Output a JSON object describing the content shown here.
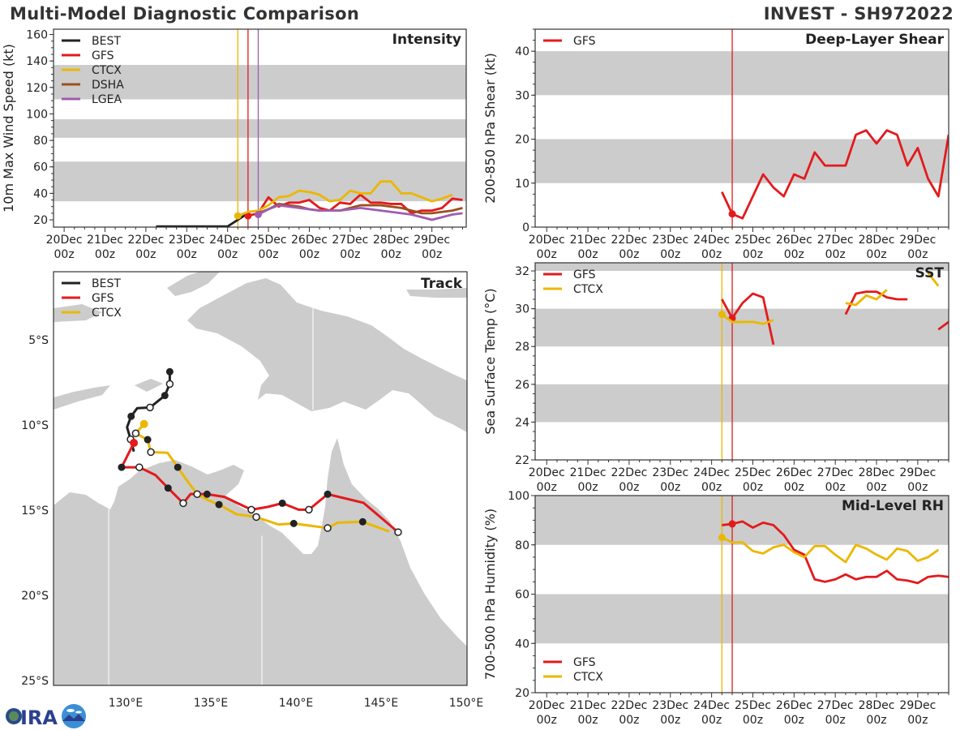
{
  "header": {
    "title": "Multi-Model Diagnostic Comparison",
    "storm": "INVEST - SH972022"
  },
  "logo": {
    "text": "CIRA"
  },
  "x_ticks": [
    "20Dec",
    "21Dec",
    "22Dec",
    "23Dec",
    "24Dec",
    "25Dec",
    "26Dec",
    "27Dec",
    "28Dec",
    "29Dec"
  ],
  "x_tick_sub": "00z",
  "chart_data": [
    {
      "id": "intensity",
      "type": "line",
      "title": "Intensity",
      "ylabel": "10m Max Wind Speed (kt)",
      "ylim": [
        14.5,
        164
      ],
      "yticks": [
        20,
        40,
        60,
        80,
        100,
        120,
        140,
        160
      ],
      "bands": [
        [
          34,
          64
        ],
        [
          82,
          96
        ],
        [
          111,
          137
        ]
      ],
      "legend": "top-left",
      "init_lines": [
        {
          "model": "CTCX",
          "time": "2022-12-24T06"
        },
        {
          "model": "GFS",
          "time": "2022-12-24T12"
        },
        {
          "model": "LGEA",
          "time": "2022-12-24T18"
        }
      ],
      "series": [
        {
          "name": "BEST",
          "color": "#222222",
          "start": "2022-12-22T06",
          "step_hours": 6,
          "values": [
            15,
            15,
            15,
            15,
            15,
            15,
            15,
            15,
            20,
            25
          ]
        },
        {
          "name": "GFS",
          "color": "#e31a1c",
          "start": "2022-12-24T12",
          "step_hours": 6,
          "marker_first": true,
          "values": [
            23,
            25,
            37,
            30,
            33,
            33,
            35,
            29,
            27,
            33,
            32,
            39,
            33,
            33,
            32,
            32,
            25,
            27,
            27,
            29,
            36,
            35
          ]
        },
        {
          "name": "CTCX",
          "color": "#ebb700",
          "start": "2022-12-24T06",
          "step_hours": 6,
          "marker_first": true,
          "values": [
            23,
            26,
            27,
            31,
            37,
            38,
            42,
            41,
            39,
            34,
            35,
            42,
            40,
            40,
            49,
            49,
            40,
            40,
            37,
            34,
            36,
            39
          ]
        },
        {
          "name": "DSHA",
          "color": "#9c4f1f",
          "start": "2022-12-24T18",
          "step_hours": 6,
          "values": [
            25,
            28,
            32,
            31,
            30,
            28,
            27,
            27,
            27,
            29,
            31,
            31,
            31,
            30,
            29,
            27,
            25,
            25,
            26,
            27,
            29
          ]
        },
        {
          "name": "LGEA",
          "color": "#a05cb0",
          "start": "2022-12-24T18",
          "step_hours": 6,
          "marker_first": true,
          "values": [
            24,
            28,
            31,
            30,
            29,
            28,
            27,
            27,
            27,
            28,
            29,
            28,
            27,
            26,
            25,
            24,
            22,
            20,
            22,
            24,
            25
          ]
        }
      ]
    },
    {
      "id": "shear",
      "type": "line",
      "title": "Deep-Layer Shear",
      "ylabel": "200-850 hPa Shear (kt)",
      "ylim": [
        0,
        45
      ],
      "yticks": [
        0,
        10,
        20,
        30,
        40
      ],
      "bands": [
        [
          10,
          20
        ],
        [
          30,
          40
        ]
      ],
      "legend": "top-left",
      "init_lines": [
        {
          "model": "GFS",
          "time": "2022-12-24T12"
        }
      ],
      "series": [
        {
          "name": "GFS",
          "color": "#e31a1c",
          "start": "2022-12-24T06",
          "step_hours": 6,
          "marker_at": 1,
          "values": [
            8,
            3,
            2,
            7,
            12,
            9,
            7,
            12,
            11,
            17,
            14,
            14,
            14,
            21,
            22,
            19,
            22,
            21,
            14,
            18,
            11,
            7,
            21
          ]
        }
      ]
    },
    {
      "id": "sst",
      "type": "line",
      "title": "SST",
      "ylabel": "Sea Surface Temp (°C)",
      "ylim": [
        22,
        32.43
      ],
      "yticks": [
        22,
        24,
        26,
        28,
        30,
        32
      ],
      "bands": [
        [
          24,
          26
        ],
        [
          28,
          30
        ],
        [
          32,
          33
        ]
      ],
      "legend": "top-left",
      "init_lines": [
        {
          "model": "CTCX",
          "time": "2022-12-24T06"
        },
        {
          "model": "GFS",
          "time": "2022-12-24T12"
        }
      ],
      "series": [
        {
          "name": "GFS",
          "color": "#e31a1c",
          "start": "2022-12-24T06",
          "step_hours": 6,
          "marker_at": 1,
          "values": [
            30.5,
            29.5,
            30.3,
            30.8,
            30.6,
            28.1,
            null,
            null,
            null,
            null,
            null,
            null,
            29.7,
            30.8,
            30.9,
            30.9,
            30.6,
            30.5,
            30.5,
            null,
            null,
            28.9,
            29.3
          ]
        },
        {
          "name": "CTCX",
          "color": "#ebb700",
          "start": "2022-12-24T06",
          "step_hours": 6,
          "marker_at": 0,
          "values": [
            29.7,
            29.3,
            29.3,
            29.3,
            29.2,
            29.4,
            null,
            null,
            null,
            null,
            null,
            null,
            30.3,
            30.2,
            30.7,
            30.5,
            31.0,
            null,
            null,
            null,
            31.9,
            31.2
          ]
        }
      ]
    },
    {
      "id": "rh",
      "type": "line",
      "title": "Mid-Level RH",
      "ylabel": "700-500 hPa Humidity (%)",
      "ylim": [
        20,
        100
      ],
      "yticks": [
        20,
        40,
        60,
        80,
        100
      ],
      "bands": [
        [
          40,
          60
        ],
        [
          80,
          100
        ]
      ],
      "legend": "bottom-left",
      "init_lines": [
        {
          "model": "CTCX",
          "time": "2022-12-24T06"
        },
        {
          "model": "GFS",
          "time": "2022-12-24T12"
        }
      ],
      "series": [
        {
          "name": "GFS",
          "color": "#e31a1c",
          "start": "2022-12-24T06",
          "step_hours": 6,
          "marker_at": 1,
          "values": [
            88,
            88.5,
            89.5,
            87,
            89,
            88,
            84,
            78,
            76,
            66,
            65,
            66,
            68,
            66,
            67,
            67,
            69.5,
            66,
            65.5,
            64.5,
            67,
            67.5,
            67
          ]
        },
        {
          "name": "CTCX",
          "color": "#ebb700",
          "start": "2022-12-24T06",
          "step_hours": 6,
          "marker_at": 0,
          "values": [
            83,
            81,
            81,
            77.5,
            76.5,
            79,
            80,
            77,
            75,
            79.5,
            79.5,
            76,
            73,
            80,
            78.5,
            76,
            74,
            78.5,
            77.5,
            73.5,
            75,
            78
          ]
        }
      ]
    },
    {
      "id": "track",
      "type": "map",
      "title": "Track",
      "legend": "top-left",
      "xlim": [
        125.76,
        150.05
      ],
      "ylim": [
        -25.2,
        -0.95
      ],
      "lon_ticks": [
        "130°E",
        "135°E",
        "140°E",
        "145°E",
        "150°E"
      ],
      "lat_ticks": [
        "5°S",
        "10°S",
        "15°S",
        "20°S",
        "25°S"
      ],
      "land_color": "#cccccc",
      "series": [
        {
          "name": "BEST",
          "color": "#222222",
          "points": [
            [
              132.59,
              -6.87,
              "filled"
            ],
            [
              132.59,
              -7.59,
              "open"
            ],
            [
              132.3,
              -8.27,
              "filled"
            ],
            [
              131.43,
              -8.97,
              "open"
            ],
            [
              130.68,
              -9.01,
              null
            ],
            [
              130.32,
              -9.49,
              "filled"
            ],
            [
              130.08,
              -10.13,
              null
            ],
            [
              130.29,
              -10.84,
              "open"
            ],
            [
              130.48,
              -11.56,
              null
            ]
          ]
        },
        {
          "name": "GFS",
          "color": "#e31a1c",
          "points": [
            [
              130.48,
              -11.05,
              "start"
            ],
            [
              129.76,
              -12.48,
              "filled"
            ],
            [
              130.8,
              -12.48,
              "open"
            ],
            [
              131.75,
              -12.94,
              null
            ],
            [
              132.49,
              -13.7,
              "filled"
            ],
            [
              133.38,
              -14.59,
              "open"
            ],
            [
              133.81,
              -14.05,
              null
            ],
            [
              134.78,
              -14.06,
              "filled"
            ],
            [
              135.8,
              -14.22,
              null
            ],
            [
              137.38,
              -14.97,
              "open"
            ],
            [
              138.33,
              -14.81,
              null
            ],
            [
              139.2,
              -14.59,
              "filled"
            ],
            [
              140.16,
              -14.97,
              null
            ],
            [
              140.76,
              -14.97,
              "open"
            ],
            [
              141.86,
              -14.06,
              "filled"
            ],
            [
              143.97,
              -14.57,
              null
            ],
            [
              146.0,
              -16.29,
              "open"
            ]
          ]
        },
        {
          "name": "CTCX",
          "color": "#ebb700",
          "points": [
            [
              131.08,
              -9.94,
              "start"
            ],
            [
              130.59,
              -10.49,
              "open"
            ],
            [
              131.29,
              -10.86,
              "filled"
            ],
            [
              131.48,
              -11.59,
              "open"
            ],
            [
              132.46,
              -11.63,
              null
            ],
            [
              133.06,
              -12.48,
              "filled"
            ],
            [
              133.57,
              -13.22,
              null
            ],
            [
              134.2,
              -14.06,
              "open"
            ],
            [
              134.84,
              -14.41,
              null
            ],
            [
              135.48,
              -14.67,
              "filled"
            ],
            [
              136.51,
              -15.24,
              null
            ],
            [
              137.67,
              -15.4,
              "open"
            ],
            [
              138.97,
              -15.84,
              null
            ],
            [
              139.87,
              -15.78,
              "filled"
            ],
            [
              141.86,
              -16.05,
              "open"
            ],
            [
              142.46,
              -15.73,
              null
            ],
            [
              143.92,
              -15.68,
              "filled"
            ],
            [
              145.48,
              -16.25,
              null
            ]
          ]
        }
      ]
    }
  ]
}
